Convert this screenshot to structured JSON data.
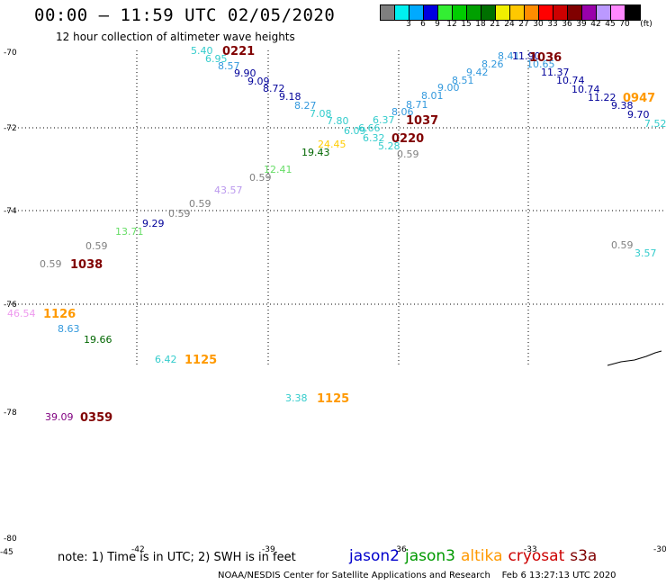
{
  "header": {
    "title": "00:00 – 11:59 UTC 02/05/2020",
    "subtitle": "12 hour collection of altimeter wave heights"
  },
  "legend": {
    "colors": [
      "#808080",
      "#00ffff",
      "#00c0ff",
      "#0000ff",
      "#00ffff",
      "#00ff00",
      "#00c000",
      "#008000",
      "#ffff00",
      "#ffc000",
      "#ff8000",
      "#ff0000",
      "#c00000",
      "#800000",
      "#8000a0",
      "#c080ff",
      "#ff80ff",
      "#000000"
    ],
    "swatch_colors": [
      "#7f7f7f",
      "#00f0f0",
      "#00aaff",
      "#0000e0",
      "#33ee33",
      "#00cc00",
      "#00a000",
      "#007000",
      "#f0f000",
      "#ffc800",
      "#ff8c00",
      "#ff0000",
      "#cc0000",
      "#800000",
      "#9900aa",
      "#bb99ff",
      "#ff88ff",
      "#000000"
    ],
    "labels": [
      "3",
      "6",
      "9",
      "12",
      "15",
      "18",
      "21",
      "24",
      "27",
      "30",
      "33",
      "36",
      "39",
      "42",
      "45",
      "70",
      "(ft)"
    ]
  },
  "map": {
    "lat_labels": [
      "-70",
      "-72",
      "-74",
      "-76",
      "-78",
      "-80"
    ],
    "lon_labels": [
      "-45",
      "-42",
      "-39",
      "-36",
      "-33",
      "-30"
    ],
    "swh_points": [
      {
        "v": "5.40",
        "c": "#33cccc"
      },
      {
        "v": "6.95",
        "c": "#33cccc"
      },
      {
        "v": "8.57",
        "c": "#3399dd"
      },
      {
        "v": "9.90",
        "c": "#000099"
      },
      {
        "v": "9.09",
        "c": "#000099"
      },
      {
        "v": "8.72",
        "c": "#000099"
      },
      {
        "v": "9.18",
        "c": "#000099"
      },
      {
        "v": "8.27",
        "c": "#3399dd"
      },
      {
        "v": "7.08",
        "c": "#33cccc"
      },
      {
        "v": "7.80",
        "c": "#33cccc"
      },
      {
        "v": "6.66",
        "c": "#33cccc"
      },
      {
        "v": "6.09",
        "c": "#33cccc"
      },
      {
        "v": "6.32",
        "c": "#33cccc"
      },
      {
        "v": "5.28",
        "c": "#33cccc"
      },
      {
        "v": "0.59",
        "c": "#808080"
      },
      {
        "v": "6.37",
        "c": "#33cccc"
      },
      {
        "v": "8.06",
        "c": "#3399dd"
      },
      {
        "v": "8.71",
        "c": "#3399dd"
      },
      {
        "v": "8.01",
        "c": "#3399dd"
      },
      {
        "v": "9.00",
        "c": "#3399dd"
      },
      {
        "v": "8.51",
        "c": "#3399dd"
      },
      {
        "v": "9.42",
        "c": "#3399dd"
      },
      {
        "v": "8.26",
        "c": "#3399dd"
      },
      {
        "v": "8.41",
        "c": "#3399dd"
      },
      {
        "v": "11.90",
        "c": "#000099"
      },
      {
        "v": "10.65",
        "c": "#3399dd"
      },
      {
        "v": "11.37",
        "c": "#000099"
      },
      {
        "v": "10.74",
        "c": "#000099"
      },
      {
        "v": "10.74",
        "c": "#000099"
      },
      {
        "v": "11.22",
        "c": "#000099"
      },
      {
        "v": "9.38",
        "c": "#000099"
      },
      {
        "v": "9.70",
        "c": "#000099"
      },
      {
        "v": "7.52",
        "c": "#33cccc"
      },
      {
        "v": "24.45",
        "c": "#ffcc00"
      },
      {
        "v": "19.43",
        "c": "#006600"
      },
      {
        "v": "12.41",
        "c": "#66dd66"
      },
      {
        "v": "0.59",
        "c": "#808080"
      },
      {
        "v": "43.57",
        "c": "#bb99ee"
      },
      {
        "v": "0.59",
        "c": "#808080"
      },
      {
        "v": "0.59",
        "c": "#808080"
      },
      {
        "v": "9.29",
        "c": "#000099"
      },
      {
        "v": "13.71",
        "c": "#66dd66"
      },
      {
        "v": "0.59",
        "c": "#808080"
      },
      {
        "v": "0.59",
        "c": "#808080"
      },
      {
        "v": "46.54",
        "c": "#ee99ee"
      },
      {
        "v": "8.63",
        "c": "#3399dd"
      },
      {
        "v": "19.66",
        "c": "#006600"
      },
      {
        "v": "6.42",
        "c": "#33cccc"
      },
      {
        "v": "3.38",
        "c": "#33cccc"
      },
      {
        "v": "39.09",
        "c": "#800080"
      },
      {
        "v": "0.59",
        "c": "#808080"
      },
      {
        "v": "3.57",
        "c": "#33cccc"
      }
    ],
    "time_labels": [
      {
        "v": "0221",
        "c": "#800000"
      },
      {
        "v": "1036",
        "c": "#800000"
      },
      {
        "v": "0947",
        "c": "#ff9900"
      },
      {
        "v": "1037",
        "c": "#800000"
      },
      {
        "v": "0220",
        "c": "#800000"
      },
      {
        "v": "1038",
        "c": "#800000"
      },
      {
        "v": "1126",
        "c": "#ff9900"
      },
      {
        "v": "1125",
        "c": "#ff9900"
      },
      {
        "v": "1125",
        "c": "#ff9900"
      },
      {
        "v": "0359",
        "c": "#800000"
      }
    ]
  },
  "footer": {
    "note": "note: 1) Time is in UTC; 2) SWH is in feet",
    "satellites": [
      {
        "name": "jason2",
        "color": "#0000cc"
      },
      {
        "name": "jason3",
        "color": "#009900"
      },
      {
        "name": "altika",
        "color": "#ff9900"
      },
      {
        "name": "cryosat",
        "color": "#cc0000"
      },
      {
        "name": "s3a",
        "color": "#800000"
      }
    ],
    "credit": "NOAA/NESDIS Center for Satellite Applications and Research",
    "timestamp": "Feb  6 13:27:13 UTC 2020"
  }
}
